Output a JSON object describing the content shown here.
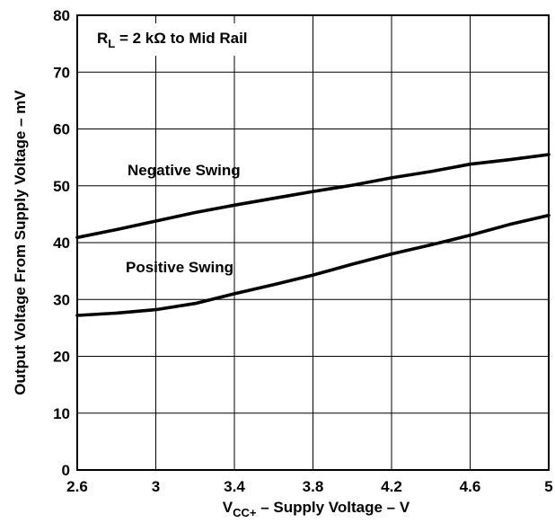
{
  "chart_data": {
    "type": "line",
    "xlabel": {
      "prefix": "V",
      "sub": "CC+",
      "suffix": " – Supply Voltage – V"
    },
    "ylabel": "Output Voltage From Supply Voltage – mV",
    "xlim": [
      2.6,
      5
    ],
    "ylim": [
      0,
      80
    ],
    "x_ticks": [
      "2.6",
      "3",
      "3.4",
      "3.8",
      "4.2",
      "4.6",
      "5"
    ],
    "y_ticks": [
      "0",
      "10",
      "20",
      "30",
      "40",
      "50",
      "60",
      "70",
      "80"
    ],
    "grid": true,
    "condition": {
      "prefix": "R",
      "sub": "L",
      "suffix": " = 2 kΩ to Mid Rail"
    },
    "series": [
      {
        "name": "Negative Swing",
        "x": [
          2.6,
          2.8,
          3.0,
          3.2,
          3.4,
          3.6,
          3.8,
          4.0,
          4.2,
          4.4,
          4.6,
          4.8,
          5.0
        ],
        "y": [
          40.9,
          42.3,
          43.8,
          45.3,
          46.6,
          47.8,
          49.0,
          50.1,
          51.4,
          52.5,
          53.8,
          54.6,
          55.5
        ]
      },
      {
        "name": "Positive Swing",
        "x": [
          2.6,
          2.8,
          3.0,
          3.2,
          3.4,
          3.6,
          3.8,
          4.0,
          4.2,
          4.4,
          4.6,
          4.8,
          5.0
        ],
        "y": [
          27.2,
          27.6,
          28.2,
          29.3,
          31.0,
          32.6,
          34.3,
          36.2,
          38.0,
          39.6,
          41.3,
          43.2,
          44.8
        ]
      }
    ]
  }
}
